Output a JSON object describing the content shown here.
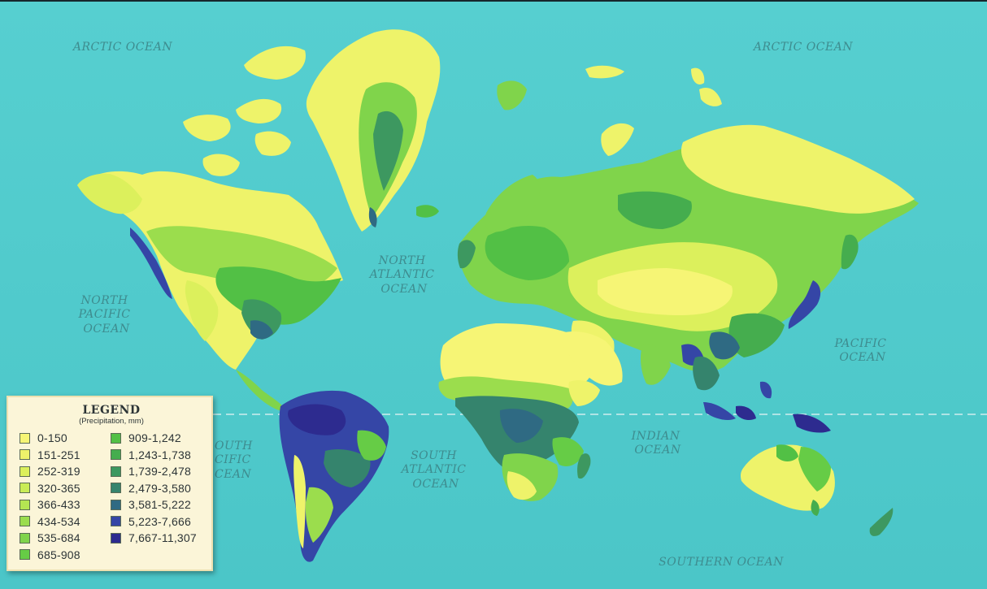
{
  "oceans": {
    "arctic_left": "ARCTIC OCEAN",
    "arctic_right": "ARCTIC OCEAN",
    "north_pacific": [
      "NORTH",
      "PACIFIC",
      "OCEAN"
    ],
    "north_atlantic": [
      "NORTH",
      "ATLANTIC",
      "OCEAN"
    ],
    "pacific": [
      "PACIFIC",
      "OCEAN"
    ],
    "south_pacific": [
      "OUTH",
      "CIFIC",
      "CEAN"
    ],
    "south_atlantic": [
      "SOUTH",
      "ATLANTIC",
      "OCEAN"
    ],
    "indian": [
      "INDIAN",
      "OCEAN"
    ],
    "southern": "SOUTHERN OCEAN"
  },
  "legend": {
    "title": "LEGEND",
    "subtitle": "(Precipitation, mm)",
    "items": [
      {
        "label": "0-150",
        "color": "#f6f575"
      },
      {
        "label": "151-251",
        "color": "#eef36a"
      },
      {
        "label": "252-319",
        "color": "#dcf05c"
      },
      {
        "label": "320-365",
        "color": "#c9ec56"
      },
      {
        "label": "366-433",
        "color": "#b4e552"
      },
      {
        "label": "434-534",
        "color": "#9bdd4d"
      },
      {
        "label": "535-684",
        "color": "#80d44b"
      },
      {
        "label": "685-908",
        "color": "#66cc46"
      },
      {
        "label": "909-1,242",
        "color": "#52c045"
      },
      {
        "label": "1,243-1,738",
        "color": "#45ad4e"
      },
      {
        "label": "1,739-2,478",
        "color": "#3d9860"
      },
      {
        "label": "2,479-3,580",
        "color": "#35846d"
      },
      {
        "label": "3,581-5,222",
        "color": "#2f6a83"
      },
      {
        "label": "5,223-7,666",
        "color": "#3546a6"
      },
      {
        "label": "7,667-11,307",
        "color": "#2d2b8f"
      }
    ]
  },
  "colors": {
    "ocean": "#52cccd",
    "ocean_label": "#3e8c8f",
    "equator": "#cfeeee"
  }
}
